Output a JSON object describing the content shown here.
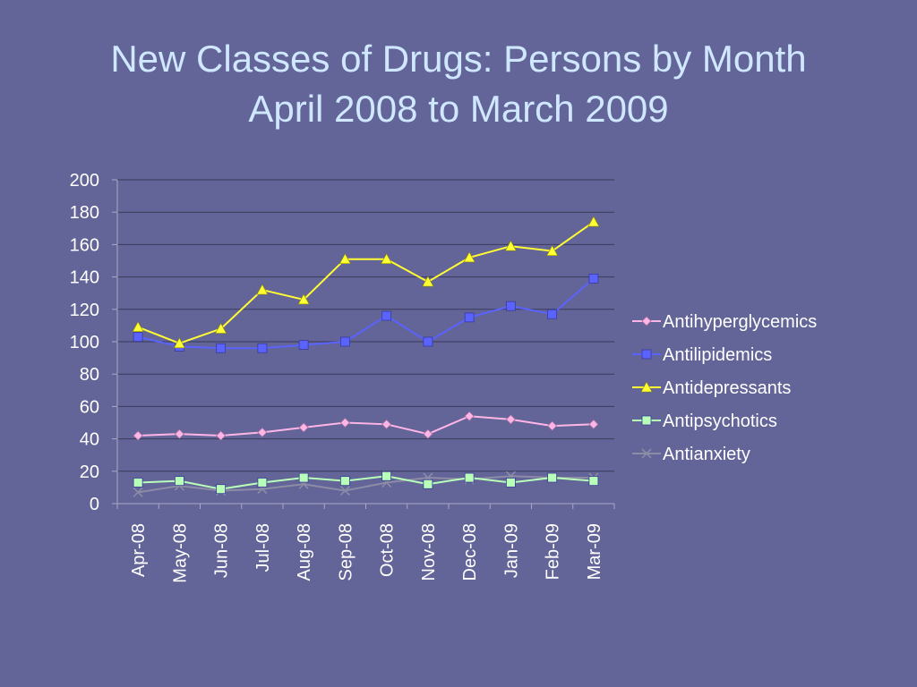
{
  "title": {
    "line1": "New Classes of Drugs: Persons by Month",
    "line2": "April 2008 to March 2009"
  },
  "colors": {
    "background": "#636498",
    "title": "#cfe8ff",
    "text": "#ffffff",
    "gridline": "#3a3a5a"
  },
  "chart_data": {
    "type": "line",
    "categories": [
      "Apr-08",
      "May-08",
      "Jun-08",
      "Jul-08",
      "Aug-08",
      "Sep-08",
      "Oct-08",
      "Nov-08",
      "Dec-08",
      "Jan-09",
      "Feb-09",
      "Mar-09"
    ],
    "ylim": [
      0,
      200
    ],
    "yticks": [
      0,
      20,
      40,
      60,
      80,
      100,
      120,
      140,
      160,
      180,
      200
    ],
    "grid": true,
    "legend_position": "right",
    "series": [
      {
        "name": "Antihyperglycemics",
        "color": "#ffb6e6",
        "marker": "diamond",
        "values": [
          42,
          43,
          42,
          44,
          47,
          50,
          49,
          43,
          54,
          52,
          48,
          49
        ]
      },
      {
        "name": "Antilipidemics",
        "color": "#5b63ff",
        "marker": "square",
        "values": [
          103,
          97,
          96,
          96,
          98,
          100,
          116,
          100,
          115,
          122,
          117,
          139
        ]
      },
      {
        "name": "Antidepressants",
        "color": "#ffff33",
        "marker": "triangle",
        "values": [
          109,
          99,
          108,
          132,
          126,
          151,
          151,
          137,
          152,
          159,
          156,
          174
        ]
      },
      {
        "name": "Antipsychotics",
        "color": "#b8ffb8",
        "marker": "square",
        "values": [
          13,
          14,
          9,
          13,
          16,
          14,
          17,
          12,
          16,
          13,
          16,
          14
        ]
      },
      {
        "name": "Antianxiety",
        "color": "#8c8ca6",
        "marker": "x",
        "values": [
          7,
          11,
          8,
          9,
          12,
          8,
          13,
          16,
          15,
          17,
          16,
          16
        ]
      }
    ]
  }
}
